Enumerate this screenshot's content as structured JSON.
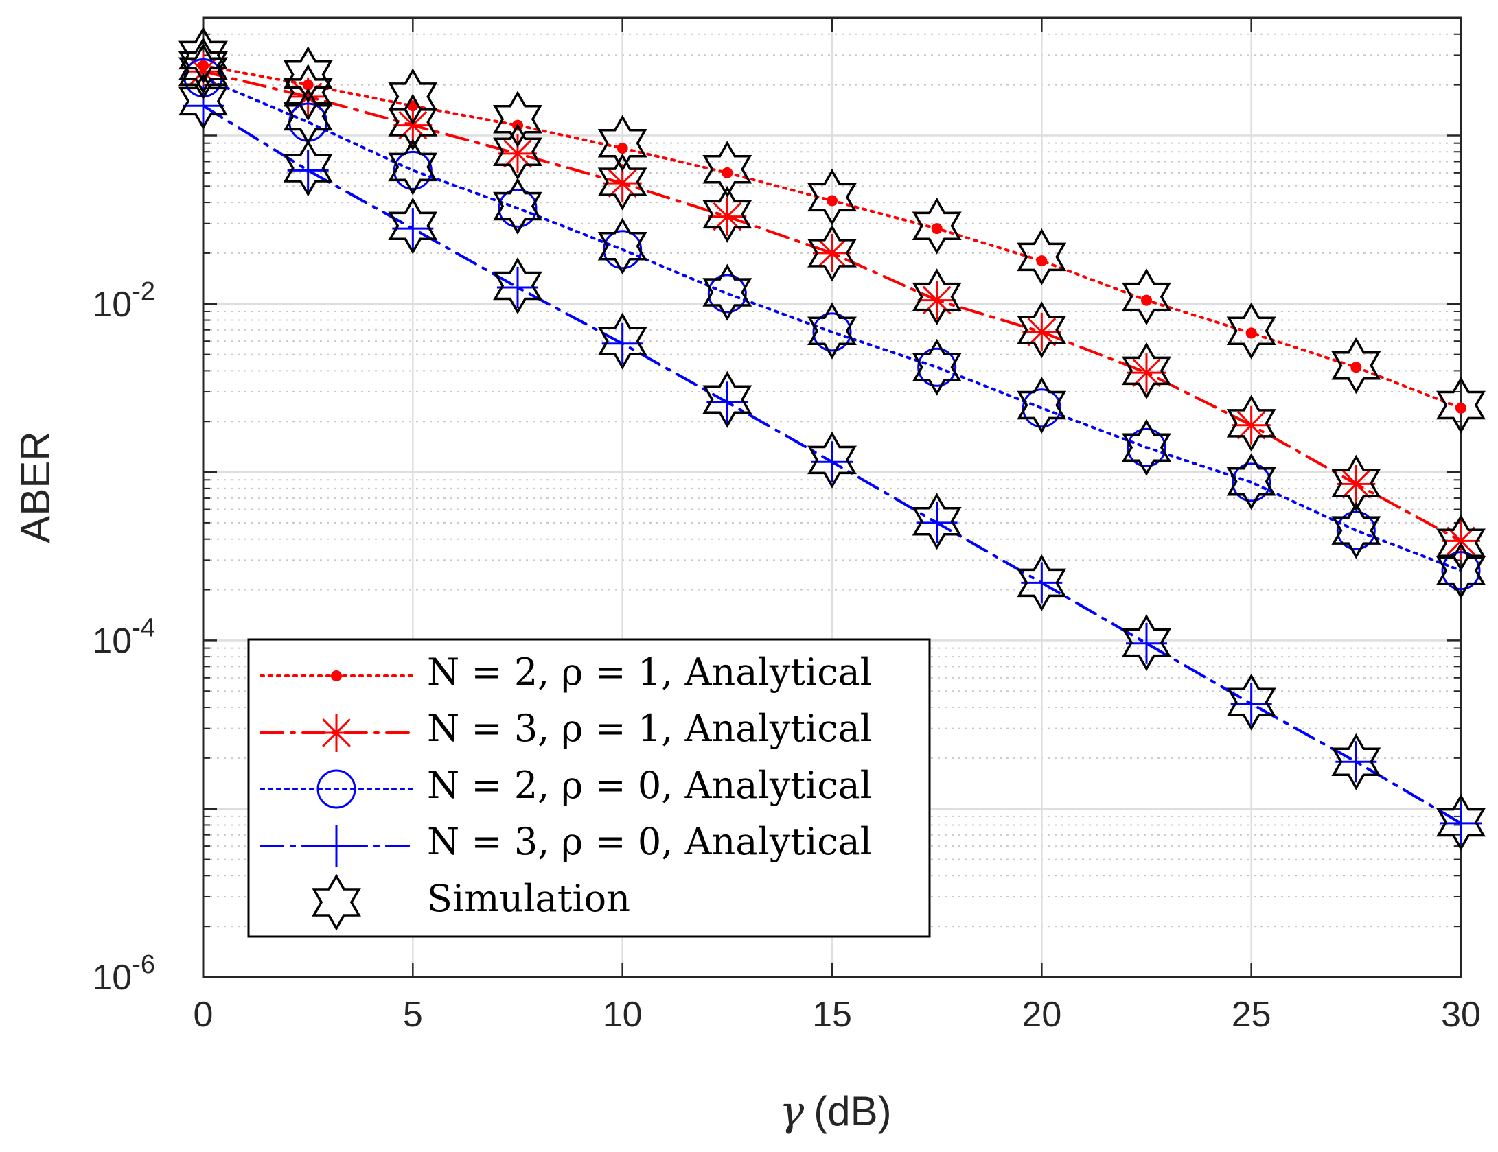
{
  "chart_data": {
    "type": "line",
    "title": "",
    "xlabel_symbol": "γ",
    "xlabel_unit": "(dB)",
    "ylabel": "ABER",
    "xlim": [
      0,
      30
    ],
    "ylim": [
      1e-06,
      0.5
    ],
    "yscale": "log",
    "grid": true,
    "minor_grid": true,
    "xticks": [
      0,
      5,
      10,
      15,
      20,
      25,
      30
    ],
    "xtick_labels": [
      "0",
      "5",
      "10",
      "15",
      "20",
      "25",
      "30"
    ],
    "yticks": [
      {
        "value": 0.01,
        "base": "10",
        "exp": "-2"
      },
      {
        "value": 0.0001,
        "base": "10",
        "exp": "-4"
      },
      {
        "value": 1e-06,
        "base": "10",
        "exp": "-6"
      }
    ],
    "x": [
      0,
      2.5,
      5,
      7.5,
      10,
      12.5,
      15,
      17.5,
      20,
      22.5,
      25,
      27.5,
      30
    ],
    "series": [
      {
        "key": "n2r1",
        "name": "N = 2, ρ = 1, Analytical",
        "color": "#ff0000",
        "dash": "4 8",
        "marker": "dot",
        "values": [
          0.26,
          0.2,
          0.15,
          0.115,
          0.084,
          0.06,
          0.041,
          0.028,
          0.018,
          0.0105,
          0.0067,
          0.0042,
          0.0024
        ]
      },
      {
        "key": "n3r1",
        "name": "N = 3, ρ = 1, Analytical",
        "color": "#ff0000",
        "dash": "32 12 5 12",
        "marker": "asterisk",
        "values": [
          0.24,
          0.17,
          0.115,
          0.078,
          0.052,
          0.033,
          0.02,
          0.0105,
          0.0068,
          0.0039,
          0.0019,
          0.00085,
          0.00039
        ]
      },
      {
        "key": "n2r0",
        "name": "N = 2, ρ = 0, Analytical",
        "color": "#0000ff",
        "dash": "4 8",
        "marker": "circle",
        "values": [
          0.22,
          0.12,
          0.062,
          0.037,
          0.021,
          0.0115,
          0.0068,
          0.0042,
          0.0024,
          0.0014,
          0.00087,
          0.00045,
          0.00026
        ]
      },
      {
        "key": "n3r0",
        "name": "N = 3, ρ = 0, Analytical",
        "color": "#0000ff",
        "dash": "32 12 5 12",
        "marker": "plus",
        "values": [
          0.15,
          0.062,
          0.028,
          0.0125,
          0.0058,
          0.0026,
          0.00115,
          0.0005,
          0.00022,
          9.6e-05,
          4.2e-05,
          1.9e-05,
          8.2e-06
        ]
      },
      {
        "key": "sim",
        "name": "Simulation",
        "color": "#000000",
        "dash": "none",
        "marker": "hexagram",
        "values_by_series": {
          "n2r1": [
            0.3,
            0.23,
            0.17,
            0.125,
            0.09,
            0.063,
            0.043,
            0.029,
            0.019,
            0.011,
            0.0069,
            0.0043,
            0.0025
          ],
          "n3r1": [
            0.26,
            0.18,
            0.12,
            0.08,
            0.053,
            0.034,
            0.02,
            0.011,
            0.007,
            0.004,
            0.00195,
            0.00086,
            0.00038
          ],
          "n2r0": [
            0.24,
            0.13,
            0.065,
            0.038,
            0.022,
            0.0117,
            0.0069,
            0.0042,
            0.0025,
            0.0014,
            0.00088,
            0.00045,
            0.00026
          ],
          "n3r0": [
            0.16,
            0.064,
            0.029,
            0.0128,
            0.006,
            0.0027,
            0.00118,
            0.00051,
            0.00022,
            9.7e-05,
            4.3e-05,
            1.9e-05,
            8.3e-06
          ]
        }
      }
    ],
    "legend": {
      "position": "bottom-left",
      "entries": [
        {
          "series": "n2r1",
          "label": "N = 2, ρ = 1, Analytical"
        },
        {
          "series": "n3r1",
          "label": "N = 3, ρ = 1, Analytical"
        },
        {
          "series": "n2r0",
          "label": "N = 2, ρ = 0, Analytical"
        },
        {
          "series": "n3r0",
          "label": "N = 3, ρ = 0, Analytical"
        },
        {
          "series": "sim",
          "label": "Simulation"
        }
      ]
    }
  }
}
